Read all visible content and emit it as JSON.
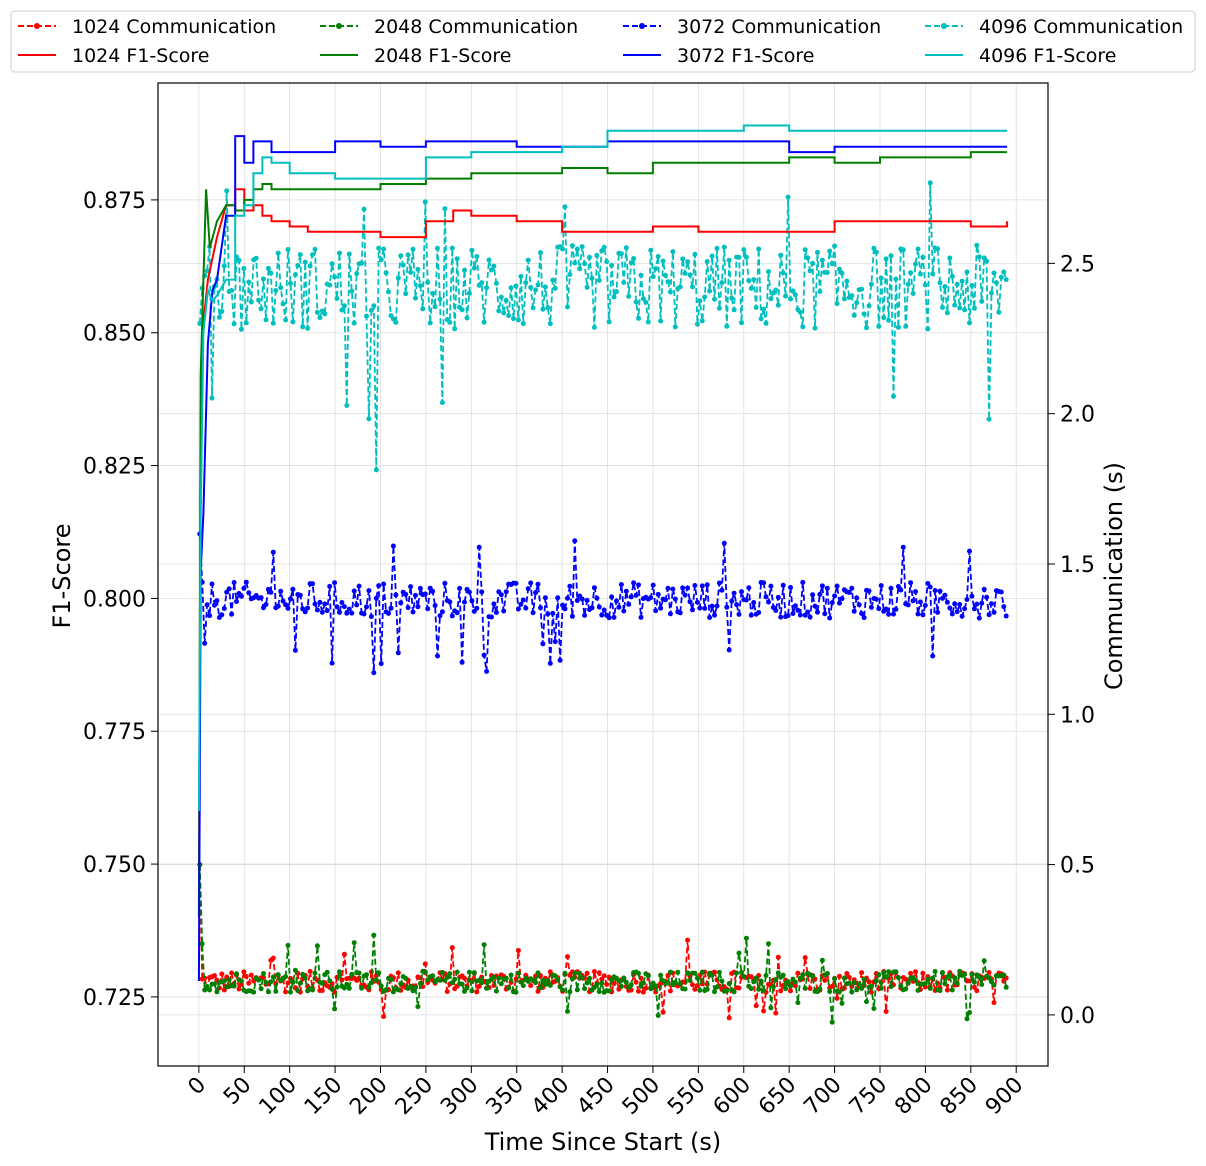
{
  "chart_data": {
    "type": "line",
    "xlabel": "Time Since Start (s)",
    "ylabel": "F1-Score",
    "y2label": "Communication (s)",
    "xlim": [
      -45,
      935
    ],
    "ylim": [
      0.712,
      0.897
    ],
    "y2lim": [
      -0.17,
      3.1
    ],
    "xticks": [
      "0",
      "50",
      "100",
      "150",
      "200",
      "250",
      "300",
      "350",
      "400",
      "450",
      "500",
      "550",
      "600",
      "650",
      "700",
      "750",
      "800",
      "850",
      "900"
    ],
    "yticks": [
      "0.725",
      "0.750",
      "0.775",
      "0.800",
      "0.825",
      "0.850",
      "0.875"
    ],
    "y2ticks": [
      "0.0",
      "0.5",
      "1.0",
      "1.5",
      "2.0",
      "2.5"
    ],
    "grid": true,
    "legend_position": "top",
    "colors": {
      "1024": "#ff0000",
      "2048": "#008000",
      "3072": "#0000ff",
      "4096": "#00bfbf"
    },
    "legend": {
      "entries": [
        {
          "label": "1024 Communication",
          "color": "#ff0000",
          "style": "dashed-marker"
        },
        {
          "label": "1024 F1-Score",
          "color": "#ff0000",
          "style": "solid"
        },
        {
          "label": "2048 Communication",
          "color": "#008000",
          "style": "dashed-marker"
        },
        {
          "label": "2048 F1-Score",
          "color": "#008000",
          "style": "solid"
        },
        {
          "label": "3072 Communication",
          "color": "#0000ff",
          "style": "dashed-marker"
        },
        {
          "label": "3072 F1-Score",
          "color": "#0000ff",
          "style": "solid"
        },
        {
          "label": "4096 Communication",
          "color": "#00bfbf",
          "style": "dashed-marker"
        },
        {
          "label": "4096 F1-Score",
          "color": "#00bfbf",
          "style": "solid"
        }
      ]
    },
    "f1_series": [
      {
        "name": "1024 F1-Score",
        "color": "#ff0000",
        "x": [
          0,
          2,
          5,
          10,
          20,
          30,
          40,
          50,
          60,
          70,
          80,
          100,
          120,
          150,
          200,
          250,
          280,
          300,
          350,
          400,
          450,
          500,
          550,
          600,
          650,
          700,
          750,
          800,
          850,
          890
        ],
        "y": [
          0.742,
          0.835,
          0.852,
          0.86,
          0.868,
          0.874,
          0.877,
          0.873,
          0.874,
          0.872,
          0.871,
          0.87,
          0.869,
          0.869,
          0.868,
          0.871,
          0.873,
          0.872,
          0.871,
          0.869,
          0.869,
          0.87,
          0.869,
          0.869,
          0.869,
          0.871,
          0.871,
          0.871,
          0.87,
          0.871
        ]
      },
      {
        "name": "2048 F1-Score",
        "color": "#008000",
        "x": [
          0,
          2,
          5,
          8,
          12,
          20,
          30,
          40,
          50,
          60,
          70,
          80,
          100,
          150,
          200,
          250,
          300,
          350,
          400,
          450,
          500,
          550,
          600,
          650,
          700,
          750,
          800,
          850,
          890
        ],
        "y": [
          0.74,
          0.842,
          0.86,
          0.877,
          0.866,
          0.871,
          0.874,
          0.873,
          0.875,
          0.877,
          0.878,
          0.877,
          0.877,
          0.877,
          0.878,
          0.879,
          0.88,
          0.88,
          0.881,
          0.88,
          0.882,
          0.882,
          0.882,
          0.883,
          0.882,
          0.883,
          0.883,
          0.884,
          0.884
        ]
      },
      {
        "name": "3072 F1-Score",
        "color": "#0000ff",
        "x": [
          0,
          2,
          5,
          10,
          15,
          20,
          30,
          40,
          50,
          60,
          70,
          80,
          100,
          150,
          200,
          250,
          300,
          350,
          400,
          450,
          500,
          550,
          600,
          650,
          700,
          750,
          800,
          850,
          890
        ],
        "y": [
          0.728,
          0.805,
          0.816,
          0.848,
          0.858,
          0.86,
          0.872,
          0.887,
          0.882,
          0.886,
          0.886,
          0.884,
          0.884,
          0.886,
          0.885,
          0.886,
          0.886,
          0.885,
          0.885,
          0.886,
          0.886,
          0.886,
          0.886,
          0.884,
          0.885,
          0.885,
          0.885,
          0.885,
          0.885
        ]
      },
      {
        "name": "4096 F1-Score",
        "color": "#00bfbf",
        "x": [
          0,
          2,
          5,
          10,
          15,
          20,
          30,
          40,
          50,
          60,
          70,
          80,
          100,
          150,
          200,
          250,
          300,
          350,
          400,
          450,
          500,
          550,
          600,
          650,
          700,
          750,
          800,
          850,
          890
        ],
        "y": [
          0.76,
          0.815,
          0.85,
          0.858,
          0.856,
          0.857,
          0.86,
          0.872,
          0.874,
          0.88,
          0.883,
          0.882,
          0.88,
          0.879,
          0.879,
          0.883,
          0.884,
          0.884,
          0.885,
          0.888,
          0.888,
          0.888,
          0.889,
          0.888,
          0.888,
          0.888,
          0.888,
          0.888,
          0.888
        ]
      }
    ],
    "comm_series": [
      {
        "name": "1024 Communication",
        "color": "#ff0000",
        "base": 0.11,
        "spread": 0.035,
        "spikes": [
          0.17,
          0.2,
          0.23,
          0.0,
          0.03
        ]
      },
      {
        "name": "2048 Communication",
        "color": "#008000",
        "base": 0.11,
        "spread": 0.035,
        "spikes": [
          0.17,
          0.21,
          0.25,
          0.0,
          0.02
        ]
      },
      {
        "name": "3072 Communication",
        "color": "#0000ff",
        "base": 1.38,
        "spread": 0.06,
        "spikes": [
          1.55,
          1.6,
          1.15,
          1.22,
          1.18
        ]
      },
      {
        "name": "4096 Communication",
        "color": "#00bfbf",
        "base": 2.42,
        "spread": 0.14,
        "spikes": [
          2.75,
          2.05,
          1.83,
          2.0,
          2.7
        ]
      }
    ]
  }
}
